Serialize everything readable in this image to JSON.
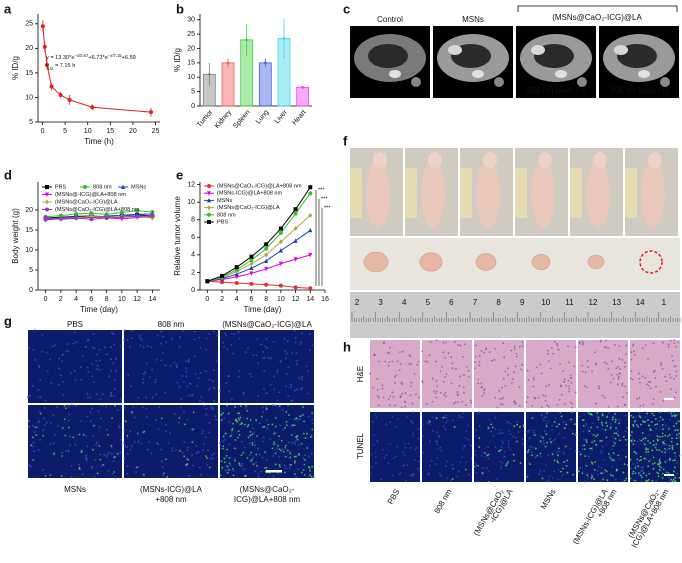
{
  "chart_data": [
    {
      "type": "line",
      "panel": "a",
      "xlabel": "Time (h)",
      "ylabel": "% ID/g",
      "x": [
        0.083,
        0.5,
        1,
        2,
        4,
        6,
        11,
        24
      ],
      "values": [
        24.5,
        20.3,
        16.6,
        12.2,
        10.5,
        9.5,
        8.0,
        7.0
      ],
      "errors": [
        1.2,
        1.0,
        0.9,
        0.8,
        0.7,
        1.0,
        0.6,
        0.9
      ],
      "color": "#e02020",
      "marker": "circle",
      "xlim": [
        -1,
        26
      ],
      "xticks": [
        0,
        5,
        10,
        15,
        20,
        25
      ],
      "ylim": [
        5,
        27
      ],
      "yticks": [
        5,
        10,
        15,
        20,
        25
      ],
      "equation": [
        "y = 13.30*e",
        "−x/0.67",
        "+6.73*e",
        "−x/7.15",
        "+6.59"
      ],
      "half_life": [
        "t",
        "1/2",
        " = 7.15 h"
      ]
    },
    {
      "type": "bar",
      "panel": "b",
      "ylabel": "% ID/g",
      "categories": [
        "Tumor",
        "Kidney",
        "Spleen",
        "Lung",
        "Liver",
        "Heart"
      ],
      "values": [
        11,
        15,
        23,
        15,
        23.5,
        6.5
      ],
      "errors": [
        4,
        1.5,
        5.5,
        1.5,
        7,
        0.5
      ],
      "colors": [
        "#808080",
        "#f06060",
        "#40d040",
        "#4060e0",
        "#40d8e8",
        "#f040f0"
      ],
      "ylim": [
        0,
        32
      ],
      "yticks": [
        0,
        5,
        10,
        15,
        20,
        25,
        30
      ]
    },
    {
      "type": "line",
      "panel": "d",
      "xlabel": "Time (day)",
      "ylabel": "Body weight (g)",
      "x": [
        0,
        2,
        4,
        6,
        8,
        10,
        12,
        14
      ],
      "xlim": [
        -1,
        15
      ],
      "xticks": [
        0,
        2,
        4,
        6,
        8,
        10,
        12,
        14
      ],
      "ylim": [
        0,
        27
      ],
      "yticks": [
        0,
        5,
        10,
        15,
        20
      ],
      "series": [
        {
          "name": "PBS",
          "color": "#000000",
          "marker": "square",
          "values": [
            18,
            18.2,
            18.4,
            18.5,
            18.3,
            18.6,
            18.8,
            18.5
          ]
        },
        {
          "name": "808 nm",
          "color": "#30c030",
          "marker": "circle",
          "values": [
            18.3,
            18.6,
            19.0,
            19.2,
            18.9,
            19.4,
            19.8,
            19.5
          ]
        },
        {
          "name": "MSNs",
          "color": "#1f3fbf",
          "marker": "triangle",
          "values": [
            17.8,
            18.0,
            18.3,
            18.1,
            18.5,
            18.7,
            18.9,
            19.0
          ]
        },
        {
          "name": "(MSNs@-ICG)@LA+808 nm",
          "color": "#e000e0",
          "marker": "triangle-down",
          "values": [
            18.0,
            17.7,
            17.9,
            18.2,
            18.0,
            17.8,
            18.1,
            18.3
          ]
        },
        {
          "name": "(MSNs@CaO₂-ICG)@LA",
          "color": "#b5a642",
          "marker": "diamond",
          "values": [
            17.5,
            17.9,
            18.1,
            18.4,
            18.2,
            18.5,
            18.3,
            18.0
          ]
        },
        {
          "name": "(MSNs@CaO₂-ICG)@LA+808 nm",
          "color": "#8b3fbf",
          "marker": "circle",
          "values": [
            17.6,
            17.8,
            18.0,
            17.7,
            18.0,
            18.2,
            18.4,
            18.6
          ]
        }
      ]
    },
    {
      "type": "line",
      "panel": "e",
      "xlabel": "Time (day)",
      "ylabel": "Relative tumor volume",
      "x": [
        0,
        2,
        4,
        6,
        8,
        10,
        12,
        14
      ],
      "xlim": [
        -1,
        16
      ],
      "xticks": [
        0,
        2,
        4,
        6,
        8,
        10,
        12,
        14,
        16
      ],
      "ylim": [
        0,
        12.3
      ],
      "yticks": [
        0,
        2,
        4,
        6,
        8,
        10,
        12
      ],
      "annotations": [
        "***",
        "***",
        "***"
      ],
      "series": [
        {
          "name": "(MSNs@CaO₂-ICG)@LA+808 nm",
          "color": "#e03030",
          "marker": "circle",
          "values": [
            1,
            0.9,
            0.8,
            0.7,
            0.6,
            0.5,
            0.3,
            0.2
          ]
        },
        {
          "name": "(MSNs-ICG)@LA+808 nm",
          "color": "#e000e0",
          "marker": "triangle-down",
          "values": [
            1,
            1.2,
            1.5,
            1.9,
            2.4,
            3.0,
            3.5,
            4.0
          ]
        },
        {
          "name": "MSNs",
          "color": "#1f3fbf",
          "marker": "triangle",
          "values": [
            1,
            1.3,
            1.8,
            2.5,
            3.3,
            4.5,
            5.6,
            6.8
          ]
        },
        {
          "name": "(MSNs@CaO₂-ICG)@LA",
          "color": "#b5a642",
          "marker": "diamond",
          "values": [
            1,
            1.4,
            2.1,
            3.0,
            4.0,
            5.5,
            7.0,
            8.5
          ]
        },
        {
          "name": "808 nm",
          "color": "#30c030",
          "marker": "circle",
          "values": [
            1,
            1.5,
            2.3,
            3.4,
            4.7,
            6.5,
            8.7,
            11.0
          ]
        },
        {
          "name": "PBS",
          "color": "#000000",
          "marker": "square",
          "values": [
            1,
            1.6,
            2.6,
            3.8,
            5.2,
            7.0,
            9.2,
            11.7
          ]
        }
      ]
    }
  ],
  "panels": {
    "c": {
      "letter": "c",
      "columns": [
        "Control",
        "MSNs"
      ],
      "group": "(MSNs@CaO₂-ICG)@LA",
      "laser": [
        "808 nm laser (–)",
        "808 nm laser (+)"
      ]
    },
    "f": {
      "letter": "f",
      "ruler": [
        "2",
        "3",
        "4",
        "5",
        "6",
        "7",
        "8",
        "9",
        "10",
        "11",
        "12",
        "13",
        "14",
        "1"
      ]
    },
    "g": {
      "letter": "g",
      "top": [
        "PBS",
        "808 nm",
        "(MSNs@CaO₂-ICG)@LA"
      ],
      "bottom": [
        [
          "MSNs"
        ],
        [
          "(MSNs-ICG)@LA",
          "+808 nm"
        ],
        [
          "(MSNs@CaO₂-",
          "ICG)@LA+808 nm"
        ]
      ]
    },
    "h": {
      "letter": "h",
      "rows": [
        "H&E",
        "TUNEL"
      ],
      "columns": [
        [
          "PBS"
        ],
        [
          "808 nm"
        ],
        [
          "(MSNs@CaO₂",
          "-ICG)@LA"
        ],
        [
          "MSNs"
        ],
        [
          "(MSNs-ICG)@LA",
          "+808 nm"
        ],
        [
          "(MSNs@CaO₂-",
          "ICG)@LA+808 nm"
        ]
      ]
    }
  }
}
